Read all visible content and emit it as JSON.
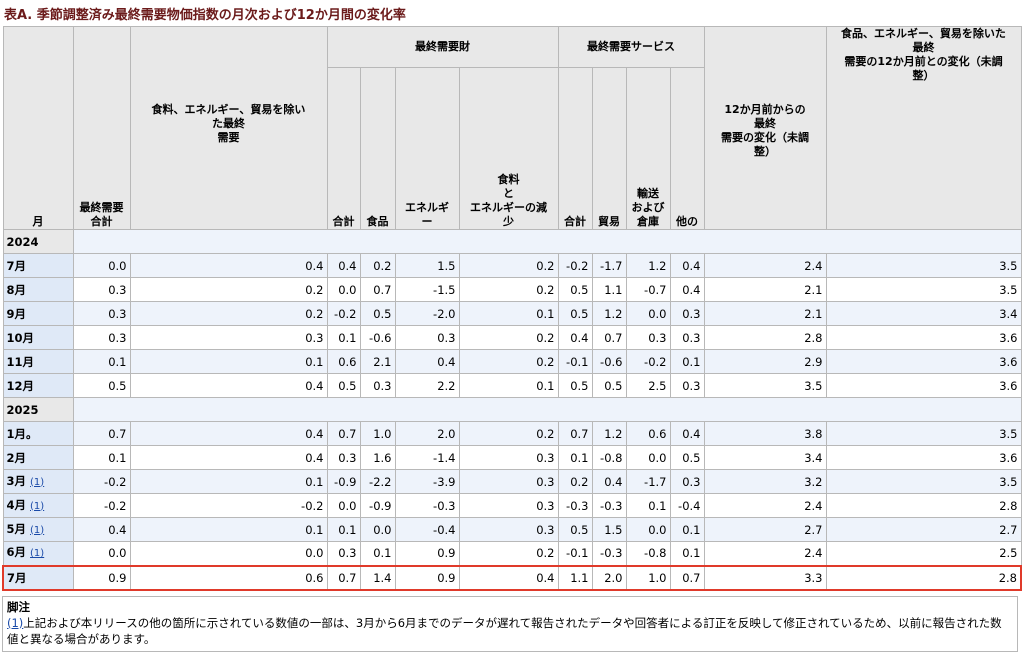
{
  "caption": "表A. 季節調整済み最終需要物価指数の月次および12か月間の変化率",
  "headers": {
    "month": "月",
    "total": "最終需要\n合計",
    "core": "食料、エネルギー、貿易を除い\nた最終\n需要",
    "goods_group": "最終需要財",
    "goods_total": "合計",
    "goods_food": "食品",
    "goods_energy": "エネルギ\nー",
    "goods_ex": "食料\nと\nエネルギーの減\n少",
    "services_group": "最終需要サービス",
    "services_total": "合計",
    "services_trade": "貿易",
    "services_transport": "輸送\nおよび\n倉庫",
    "services_other": "他の",
    "yoy": "12か月前からの\n最終\n需要の変化（未調\n整）",
    "yoy_core": "食品、エネルギー、貿易を除いた\n最終\n需要の12か月前との変化（未調\n整）"
  },
  "rows": [
    {
      "kind": "year",
      "label": "2024"
    },
    {
      "kind": "data",
      "label": "7月",
      "values": [
        "0.0",
        "0.4",
        "0.4",
        "0.2",
        "1.5",
        "0.2",
        "-0.2",
        "-1.7",
        "1.2",
        "0.4",
        "2.4",
        "3.5"
      ]
    },
    {
      "kind": "data",
      "label": "8月",
      "values": [
        "0.3",
        "0.2",
        "0.0",
        "0.7",
        "-1.5",
        "0.2",
        "0.5",
        "1.1",
        "-0.7",
        "0.4",
        "2.1",
        "3.5"
      ]
    },
    {
      "kind": "data",
      "label": "9月",
      "values": [
        "0.3",
        "0.2",
        "-0.2",
        "0.5",
        "-2.0",
        "0.1",
        "0.5",
        "1.2",
        "0.0",
        "0.3",
        "2.1",
        "3.4"
      ]
    },
    {
      "kind": "data",
      "label": "10月",
      "values": [
        "0.3",
        "0.3",
        "0.1",
        "-0.6",
        "0.3",
        "0.2",
        "0.4",
        "0.7",
        "0.3",
        "0.3",
        "2.8",
        "3.6"
      ]
    },
    {
      "kind": "data",
      "label": "11月",
      "values": [
        "0.1",
        "0.1",
        "0.6",
        "2.1",
        "0.4",
        "0.2",
        "-0.1",
        "-0.6",
        "-0.2",
        "0.1",
        "2.9",
        "3.6"
      ]
    },
    {
      "kind": "data",
      "label": "12月",
      "values": [
        "0.5",
        "0.4",
        "0.5",
        "0.3",
        "2.2",
        "0.1",
        "0.5",
        "0.5",
        "2.5",
        "0.3",
        "3.5",
        "3.6"
      ]
    },
    {
      "kind": "year",
      "label": "2025"
    },
    {
      "kind": "data",
      "label": "1月。",
      "values": [
        "0.7",
        "0.4",
        "0.7",
        "1.0",
        "2.0",
        "0.2",
        "0.7",
        "1.2",
        "0.6",
        "0.4",
        "3.8",
        "3.5"
      ]
    },
    {
      "kind": "data",
      "label": "2月",
      "values": [
        "0.1",
        "0.4",
        "0.3",
        "1.6",
        "-1.4",
        "0.3",
        "0.1",
        "-0.8",
        "0.0",
        "0.5",
        "3.4",
        "3.6"
      ]
    },
    {
      "kind": "data",
      "label": "3月",
      "fn": "(1)",
      "values": [
        "-0.2",
        "0.1",
        "-0.9",
        "-2.2",
        "-3.9",
        "0.3",
        "0.2",
        "0.4",
        "-1.7",
        "0.3",
        "3.2",
        "3.5"
      ]
    },
    {
      "kind": "data",
      "label": "4月",
      "fn": "(1)",
      "values": [
        "-0.2",
        "-0.2",
        "0.0",
        "-0.9",
        "-0.3",
        "0.3",
        "-0.3",
        "-0.3",
        "0.1",
        "-0.4",
        "2.4",
        "2.8"
      ]
    },
    {
      "kind": "data",
      "label": "5月",
      "fn": "(1)",
      "values": [
        "0.4",
        "0.1",
        "0.1",
        "0.0",
        "-0.4",
        "0.3",
        "0.5",
        "1.5",
        "0.0",
        "0.1",
        "2.7",
        "2.7"
      ]
    },
    {
      "kind": "data",
      "label": "6月",
      "fn": "(1)",
      "values": [
        "0.0",
        "0.0",
        "0.3",
        "0.1",
        "0.9",
        "0.2",
        "-0.1",
        "-0.3",
        "-0.8",
        "0.1",
        "2.4",
        "2.5"
      ]
    },
    {
      "kind": "data",
      "label": "7月",
      "highlight": true,
      "values": [
        "0.9",
        "0.6",
        "0.7",
        "1.4",
        "0.9",
        "0.4",
        "1.1",
        "2.0",
        "1.0",
        "0.7",
        "3.3",
        "2.8"
      ]
    }
  ],
  "notes": {
    "title": "脚注",
    "ref": "(1)",
    "text": "上記および本リリースの他の箇所に示されている数値の一部は、3月から6月までのデータが遅れて報告されたデータや回答者による訂正を反映して修正されているため、以前に報告された数値と異なる場合があります。"
  },
  "colors": {
    "caption": "#6b1a1a",
    "label_bg": "#dfe9f7",
    "stripe_bg": "#eef3fb",
    "header_bg": "#e8e8e8",
    "highlight_border": "#e03a2a",
    "link": "#1a4aa8"
  }
}
